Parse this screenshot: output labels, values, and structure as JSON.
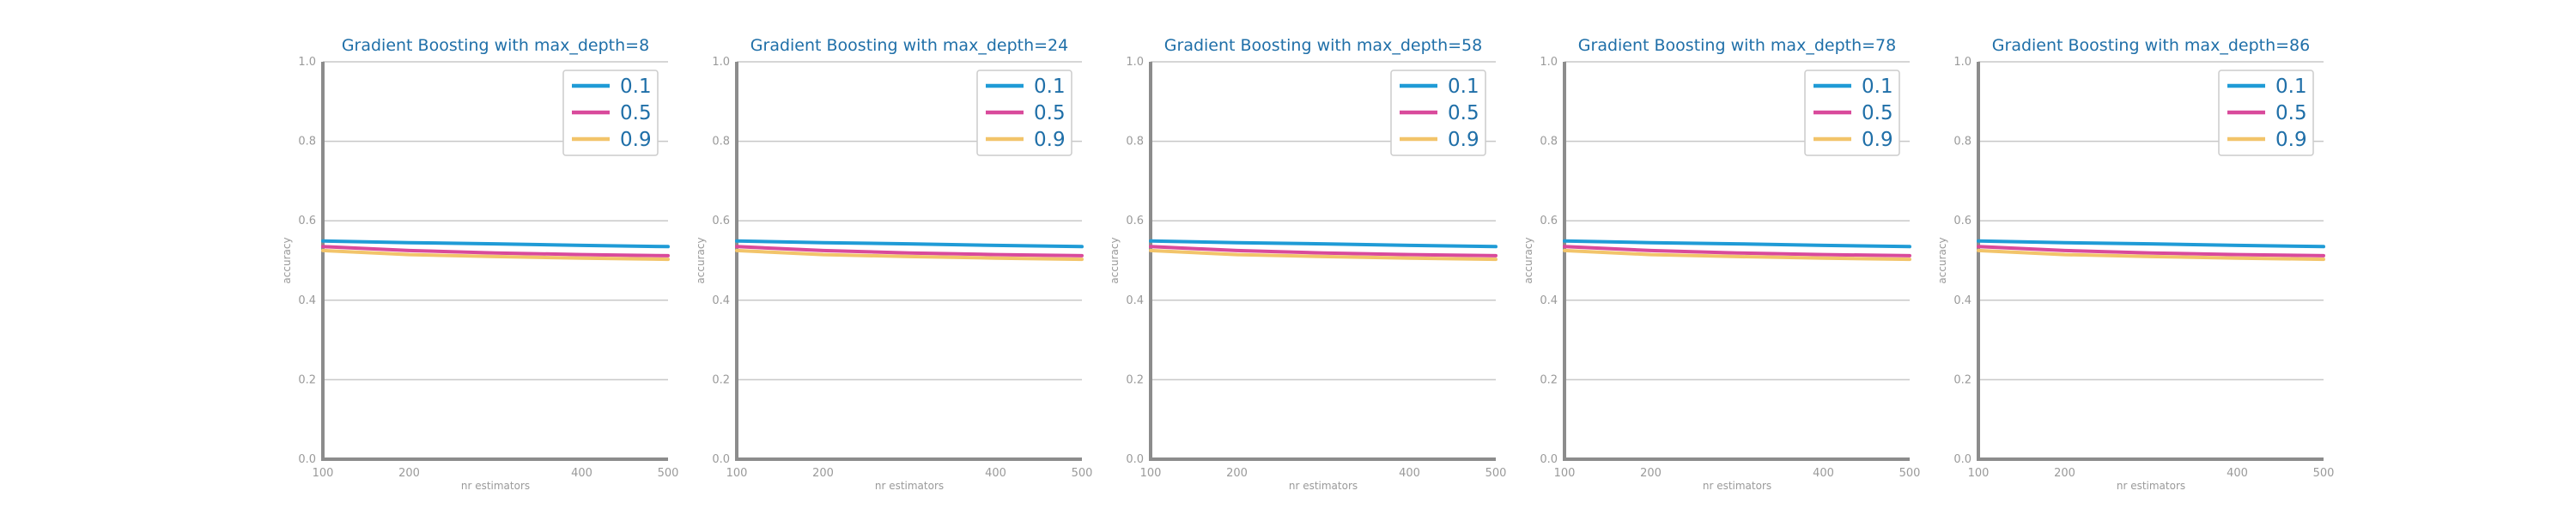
{
  "chart_data": [
    {
      "type": "line",
      "title": "Gradient Boosting with max_depth=8",
      "xlabel": "nr estimators",
      "ylabel": "accuracy",
      "xlim": [
        100,
        500
      ],
      "ylim": [
        0.0,
        1.0
      ],
      "xticks": [
        100,
        200,
        400,
        500
      ],
      "yticks": [
        0.0,
        0.2,
        0.4,
        0.6,
        0.8,
        1.0
      ],
      "grid": "y",
      "legend": "top-right",
      "x": [
        100,
        200,
        300,
        400,
        500
      ],
      "series": [
        {
          "name": "0.1",
          "color": "#1f9bd6",
          "values": [
            0.549,
            0.545,
            0.542,
            0.538,
            0.535
          ]
        },
        {
          "name": "0.5",
          "color": "#d94a9b",
          "values": [
            0.535,
            0.525,
            0.519,
            0.515,
            0.512
          ]
        },
        {
          "name": "0.9",
          "color": "#f2c46a",
          "values": [
            0.525,
            0.515,
            0.51,
            0.506,
            0.503
          ]
        }
      ]
    },
    {
      "type": "line",
      "title": "Gradient Boosting with max_depth=24",
      "xlabel": "nr estimators",
      "ylabel": "accuracy",
      "xlim": [
        100,
        500
      ],
      "ylim": [
        0.0,
        1.0
      ],
      "xticks": [
        100,
        200,
        400,
        500
      ],
      "yticks": [
        0.0,
        0.2,
        0.4,
        0.6,
        0.8,
        1.0
      ],
      "grid": "y",
      "legend": "top-right",
      "x": [
        100,
        200,
        300,
        400,
        500
      ],
      "series": [
        {
          "name": "0.1",
          "color": "#1f9bd6",
          "values": [
            0.549,
            0.545,
            0.542,
            0.538,
            0.535
          ]
        },
        {
          "name": "0.5",
          "color": "#d94a9b",
          "values": [
            0.535,
            0.525,
            0.519,
            0.515,
            0.512
          ]
        },
        {
          "name": "0.9",
          "color": "#f2c46a",
          "values": [
            0.525,
            0.515,
            0.51,
            0.506,
            0.503
          ]
        }
      ]
    },
    {
      "type": "line",
      "title": "Gradient Boosting with max_depth=58",
      "xlabel": "nr estimators",
      "ylabel": "accuracy",
      "xlim": [
        100,
        500
      ],
      "ylim": [
        0.0,
        1.0
      ],
      "xticks": [
        100,
        200,
        400,
        500
      ],
      "yticks": [
        0.0,
        0.2,
        0.4,
        0.6,
        0.8,
        1.0
      ],
      "grid": "y",
      "legend": "top-right",
      "x": [
        100,
        200,
        300,
        400,
        500
      ],
      "series": [
        {
          "name": "0.1",
          "color": "#1f9bd6",
          "values": [
            0.549,
            0.545,
            0.542,
            0.538,
            0.535
          ]
        },
        {
          "name": "0.5",
          "color": "#d94a9b",
          "values": [
            0.535,
            0.525,
            0.519,
            0.515,
            0.512
          ]
        },
        {
          "name": "0.9",
          "color": "#f2c46a",
          "values": [
            0.525,
            0.515,
            0.51,
            0.506,
            0.503
          ]
        }
      ]
    },
    {
      "type": "line",
      "title": "Gradient Boosting with max_depth=78",
      "xlabel": "nr estimators",
      "ylabel": "accuracy",
      "xlim": [
        100,
        500
      ],
      "ylim": [
        0.0,
        1.0
      ],
      "xticks": [
        100,
        200,
        400,
        500
      ],
      "yticks": [
        0.0,
        0.2,
        0.4,
        0.6,
        0.8,
        1.0
      ],
      "grid": "y",
      "legend": "top-right",
      "x": [
        100,
        200,
        300,
        400,
        500
      ],
      "series": [
        {
          "name": "0.1",
          "color": "#1f9bd6",
          "values": [
            0.549,
            0.545,
            0.542,
            0.538,
            0.535
          ]
        },
        {
          "name": "0.5",
          "color": "#d94a9b",
          "values": [
            0.535,
            0.525,
            0.519,
            0.515,
            0.512
          ]
        },
        {
          "name": "0.9",
          "color": "#f2c46a",
          "values": [
            0.525,
            0.515,
            0.51,
            0.506,
            0.503
          ]
        }
      ]
    },
    {
      "type": "line",
      "title": "Gradient Boosting with max_depth=86",
      "xlabel": "nr estimators",
      "ylabel": "accuracy",
      "xlim": [
        100,
        500
      ],
      "ylim": [
        0.0,
        1.0
      ],
      "xticks": [
        100,
        200,
        400,
        500
      ],
      "yticks": [
        0.0,
        0.2,
        0.4,
        0.6,
        0.8,
        1.0
      ],
      "grid": "y",
      "legend": "top-right",
      "x": [
        100,
        200,
        300,
        400,
        500
      ],
      "series": [
        {
          "name": "0.1",
          "color": "#1f9bd6",
          "values": [
            0.549,
            0.545,
            0.542,
            0.538,
            0.535
          ]
        },
        {
          "name": "0.5",
          "color": "#d94a9b",
          "values": [
            0.535,
            0.525,
            0.519,
            0.515,
            0.512
          ]
        },
        {
          "name": "0.9",
          "color": "#f2c46a",
          "values": [
            0.525,
            0.515,
            0.51,
            0.506,
            0.503
          ]
        }
      ]
    }
  ]
}
